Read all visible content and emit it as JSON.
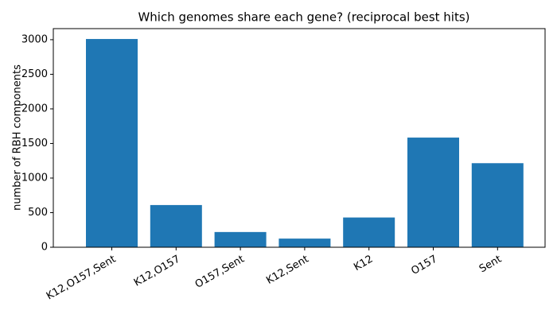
{
  "chart_data": {
    "type": "bar",
    "title": "Which genomes share each gene? (reciprocal best hits)",
    "y_label": "number of RBH components",
    "categories": [
      "K12,O157,Sent",
      "K12,O157",
      "O157,Sent",
      "K12,Sent",
      "K12",
      "O157",
      "Sent"
    ],
    "values": [
      3010,
      610,
      220,
      125,
      430,
      1585,
      1215
    ],
    "color": "#1f77b4",
    "ylim": [
      0,
      3160
    ],
    "yticks": [
      0,
      500,
      1000,
      1500,
      2000,
      2500,
      3000
    ],
    "grid": false
  }
}
